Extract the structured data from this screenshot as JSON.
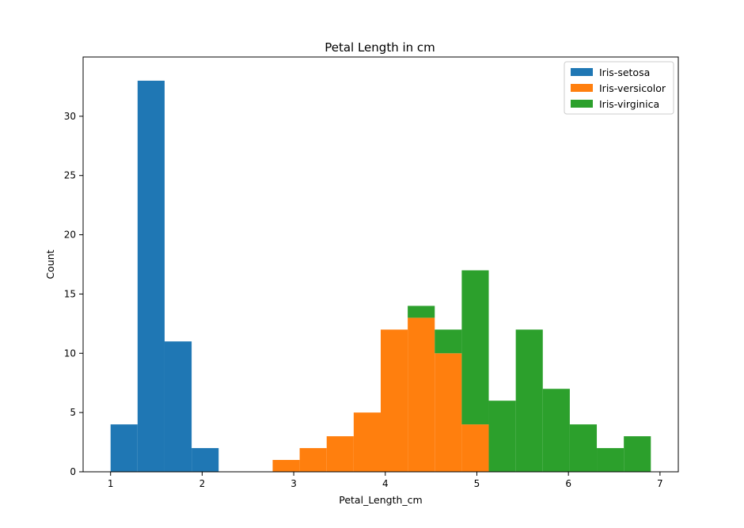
{
  "chart_data": {
    "type": "bar",
    "title": "Petal Length in cm",
    "xlabel": "Petal_Length_cm",
    "ylabel": "Count",
    "xlim": [
      0.7,
      7.2
    ],
    "ylim": [
      0,
      35.0
    ],
    "xticks": [
      1,
      2,
      3,
      4,
      5,
      6,
      7
    ],
    "yticks": [
      0,
      5,
      10,
      15,
      20,
      25,
      30
    ],
    "grid": false,
    "legend_position": "top-right",
    "stacked": true,
    "bin_edges": [
      1.0,
      1.295,
      1.59,
      1.885,
      2.18,
      2.475,
      2.77,
      3.065,
      3.36,
      3.655,
      3.95,
      4.245,
      4.54,
      4.835,
      5.13,
      5.425,
      5.72,
      6.015,
      6.31,
      6.605,
      6.9
    ],
    "series": [
      {
        "name": "Iris-setosa",
        "color": "#1f77b4",
        "values": [
          4,
          33,
          11,
          2,
          0,
          0,
          0,
          0,
          0,
          0,
          0,
          0,
          0,
          0,
          0,
          0,
          0,
          0,
          0,
          0
        ]
      },
      {
        "name": "Iris-versicolor",
        "color": "#ff7f0e",
        "values": [
          0,
          0,
          0,
          0,
          0,
          0,
          1,
          2,
          3,
          5,
          12,
          13,
          10,
          4,
          0,
          0,
          0,
          0,
          0,
          0
        ]
      },
      {
        "name": "Iris-virginica",
        "color": "#2ca02c",
        "values": [
          0,
          0,
          0,
          0,
          0,
          0,
          0,
          0,
          0,
          0,
          0,
          1,
          2,
          13,
          6,
          12,
          7,
          4,
          2,
          3
        ]
      }
    ]
  }
}
